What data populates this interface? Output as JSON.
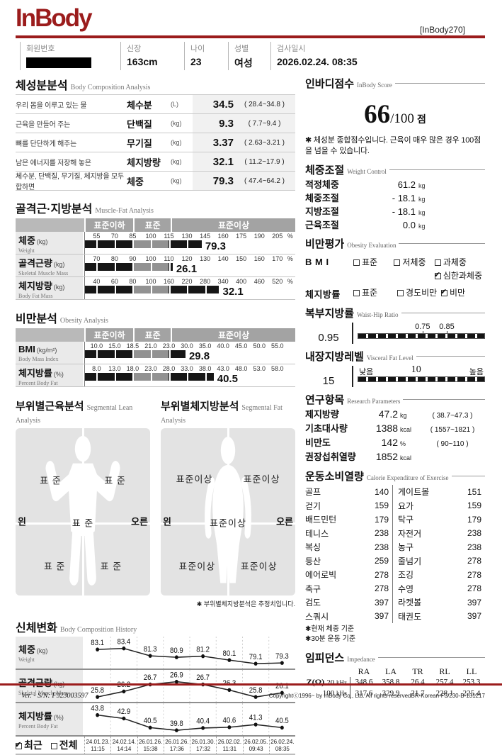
{
  "header": {
    "logo": "InBody",
    "model": "[InBody270]",
    "fields": [
      {
        "label": "회원번호",
        "value": ""
      },
      {
        "label": "신장",
        "value": "163cm"
      },
      {
        "label": "나이",
        "value": "23"
      },
      {
        "label": "성별",
        "value": "여성"
      },
      {
        "label": "검사일시",
        "value": "2026.02.24. 08:35"
      }
    ]
  },
  "body_composition": {
    "title": "체성분분석",
    "subtitle": "Body Composition Analysis",
    "rows": [
      {
        "desc": "우리 몸을 이루고 있는 물",
        "name": "체수분",
        "unit": "(L)",
        "value": "34.5",
        "range": "( 28.4~34.8 )"
      },
      {
        "desc": "근육을 만들어 주는",
        "name": "단백질",
        "unit": "(kg)",
        "value": "9.3",
        "range": "( 7.7~9.4 )"
      },
      {
        "desc": "뼈를 단단하게 해주는",
        "name": "무기질",
        "unit": "(kg)",
        "value": "3.37",
        "range": "( 2.63~3.21 )"
      },
      {
        "desc": "남은 에너지를 저장해 놓은",
        "name": "체지방량",
        "unit": "(kg)",
        "value": "32.1",
        "range": "( 11.2~17.9 )"
      },
      {
        "desc": "체수분, 단백질, 무기질, 체지방을 모두 합하면",
        "name": "체중",
        "unit": "(kg)",
        "value": "79.3",
        "range": "( 47.4~64.2 )"
      }
    ]
  },
  "muscle_fat": {
    "title": "골격근·지방분석",
    "subtitle": "Muscle-Fat Analysis",
    "band": [
      "표준이하",
      "표준",
      "표준이상"
    ],
    "axis_unit": "%",
    "rows": [
      {
        "kr": "체중",
        "en": "Weight",
        "unit": "(kg)",
        "ticks": [
          "55",
          "70",
          "85",
          "100",
          "115",
          "130",
          "145",
          "160",
          "175",
          "190",
          "205"
        ],
        "value": "79.3",
        "frac": 0.555
      },
      {
        "kr": "골격근량",
        "en": "Skeletal Muscle Mass",
        "unit": "(kg)",
        "ticks": [
          "70",
          "80",
          "90",
          "100",
          "110",
          "120",
          "130",
          "140",
          "150",
          "160",
          "170"
        ],
        "value": "26.1",
        "frac": 0.417
      },
      {
        "kr": "체지방량",
        "en": "Body Fat Mass",
        "unit": "(kg)",
        "ticks": [
          "40",
          "60",
          "80",
          "100",
          "160",
          "220",
          "280",
          "340",
          "400",
          "460",
          "520"
        ],
        "value": "32.1",
        "frac": 0.638
      }
    ]
  },
  "obesity_analysis": {
    "title": "비만분석",
    "subtitle": "Obesity Analysis",
    "band": [
      "표준이하",
      "표준",
      "표준이상"
    ],
    "axis_unit": "",
    "rows": [
      {
        "kr": "BMI",
        "en": "Body Mass Index",
        "unit": "(kg/m²)",
        "ticks": [
          "10.0",
          "15.0",
          "18.5",
          "21.0",
          "23.0",
          "30.0",
          "35.0",
          "40.0",
          "45.0",
          "50.0",
          "55.0"
        ],
        "value": "29.8",
        "frac": 0.478
      },
      {
        "kr": "체지방률",
        "en": "Percent Body Fat",
        "unit": "(%)",
        "ticks": [
          "8.0",
          "13.0",
          "18.0",
          "23.0",
          "28.0",
          "33.0",
          "38.0",
          "43.0",
          "48.0",
          "53.0",
          "58.0"
        ],
        "value": "40.5",
        "frac": 0.612
      }
    ]
  },
  "segmental_lean": {
    "title": "부위별근육분석",
    "subtitle": "Segmental Lean Analysis",
    "left": "왼",
    "right": "오른",
    "labels": {
      "left_arm": "표 준",
      "right_arm": "표 준",
      "trunk": "표 준",
      "left_leg": "표 준",
      "right_leg": "표 준"
    }
  },
  "segmental_fat": {
    "title": "부위별체지방분석",
    "subtitle": "Segmental Fat Analysis",
    "left": "왼",
    "right": "오른",
    "labels": {
      "left_arm": "표준이상",
      "right_arm": "표준이상",
      "trunk": "표준이상",
      "left_leg": "표준이상",
      "right_leg": "표준이상"
    },
    "note": "✱ 부위별체지방분석은 추정치입니다."
  },
  "history": {
    "title": "신체변화",
    "subtitle": "Body Composition History",
    "legend": [
      {
        "label": "최근",
        "checked": true
      },
      {
        "label": "전체",
        "checked": false
      }
    ],
    "rows": [
      {
        "kr": "체중",
        "en": "Weight",
        "unit": "(kg)",
        "values": [
          83.1,
          83.4,
          81.3,
          80.9,
          81.2,
          80.1,
          79.1,
          79.3
        ]
      },
      {
        "kr": "골격근량",
        "en": "Skeletal Muscle Mass",
        "unit": "(kg)",
        "values": [
          25.8,
          26.2,
          26.7,
          26.9,
          26.7,
          26.3,
          25.8,
          26.1
        ]
      },
      {
        "kr": "체지방률",
        "en": "Percent Body Fat",
        "unit": "(%)",
        "values": [
          43.8,
          42.9,
          40.5,
          39.8,
          40.4,
          40.6,
          41.3,
          40.5
        ]
      }
    ],
    "dates": [
      {
        "d": "24.01.23.",
        "t": "11:15"
      },
      {
        "d": "24.02.14.",
        "t": "14:14"
      },
      {
        "d": "26.01.26.",
        "t": "15:38"
      },
      {
        "d": "26.01.26.",
        "t": "17:36"
      },
      {
        "d": "26.01.30.",
        "t": "17:32"
      },
      {
        "d": "26.02.02.",
        "t": "11:31"
      },
      {
        "d": "26.02.05.",
        "t": "09:43"
      },
      {
        "d": "26.02.24.",
        "t": "08:35"
      }
    ]
  },
  "score": {
    "title": "인바디점수",
    "subtitle": "InBody Score",
    "value": "66",
    "denom": "/100",
    "unit": "점",
    "note": "✱ 체성분 종합점수입니다. 근육이 매우 많은 경우 100점을 넘을 수 있습니다."
  },
  "weight_control": {
    "title": "체중조절",
    "subtitle": "Weight Control",
    "rows": [
      {
        "label": "적정체중",
        "value": "61.2",
        "unit": "kg"
      },
      {
        "label": "체중조절",
        "value": "- 18.1",
        "unit": "kg"
      },
      {
        "label": "지방조절",
        "value": "- 18.1",
        "unit": "kg"
      },
      {
        "label": "근육조절",
        "value": "0.0",
        "unit": "kg"
      }
    ]
  },
  "obesity_eval": {
    "title": "비만평가",
    "subtitle": "Obesity Evaluation",
    "bmi_label": "B M I",
    "bmi_options": [
      {
        "label": "표준",
        "checked": false
      },
      {
        "label": "저체중",
        "checked": false
      },
      {
        "label": "과체중",
        "checked": false
      },
      {
        "label": "심한과체중",
        "checked": true
      }
    ],
    "pbf_label": "체지방률",
    "pbf_options": [
      {
        "label": "표준",
        "checked": false
      },
      {
        "label": "경도비만",
        "checked": false
      },
      {
        "label": "비만",
        "checked": true
      }
    ]
  },
  "whr": {
    "title": "복부지방률",
    "subtitle": "Waist-Hip Ratio",
    "value": "0.95",
    "tick1": "0.75",
    "tick2": "0.85"
  },
  "vfl": {
    "title": "내장지방레벨",
    "subtitle": "Visceral Fat Level",
    "value": "15",
    "low": "낮음",
    "mid": "10",
    "high": "높음"
  },
  "research": {
    "title": "연구항목",
    "subtitle": "Research Parameters",
    "rows": [
      {
        "label": "제지방량",
        "value": "47.2",
        "unit": "kg",
        "range": "( 38.7~47.3 )"
      },
      {
        "label": "기초대사량",
        "value": "1388",
        "unit": "kcal",
        "range": "( 1557~1821 )"
      },
      {
        "label": "비만도",
        "value": "142",
        "unit": "%",
        "range": "( 90~110 )"
      },
      {
        "label": "권장섭취열량",
        "value": "1852",
        "unit": "kcal",
        "range": ""
      }
    ]
  },
  "exercise": {
    "title": "운동소비열량",
    "subtitle": "Calorie Expenditure of Exercise",
    "left": [
      {
        "name": "골프",
        "kcal": "140"
      },
      {
        "name": "걷기",
        "kcal": "159"
      },
      {
        "name": "배드민턴",
        "kcal": "179"
      },
      {
        "name": "테니스",
        "kcal": "238"
      },
      {
        "name": "복싱",
        "kcal": "238"
      },
      {
        "name": "등산",
        "kcal": "259"
      },
      {
        "name": "에어로빅",
        "kcal": "278"
      },
      {
        "name": "축구",
        "kcal": "278"
      },
      {
        "name": "검도",
        "kcal": "397"
      },
      {
        "name": "스쿼시",
        "kcal": "397"
      }
    ],
    "right": [
      {
        "name": "게이트볼",
        "kcal": "151"
      },
      {
        "name": "요가",
        "kcal": "159"
      },
      {
        "name": "탁구",
        "kcal": "179"
      },
      {
        "name": "자전거",
        "kcal": "238"
      },
      {
        "name": "농구",
        "kcal": "238"
      },
      {
        "name": "줄넘기",
        "kcal": "278"
      },
      {
        "name": "조깅",
        "kcal": "278"
      },
      {
        "name": "수영",
        "kcal": "278"
      },
      {
        "name": "라켓볼",
        "kcal": "397"
      },
      {
        "name": "태권도",
        "kcal": "397"
      }
    ],
    "notes": [
      "✱현재 체중 기준",
      "✱30분 운동 기준"
    ]
  },
  "impedance": {
    "title": "임피던스",
    "subtitle": "Impedance",
    "cols": [
      "RA",
      "LA",
      "TR",
      "RL",
      "LL"
    ],
    "rows": [
      {
        "z": "Z(Ω)",
        "freq": "20",
        "unit": "kHz",
        "values": [
          "348.6",
          "358.8",
          "26.4",
          "257.4",
          "253.3"
        ]
      },
      {
        "z": "",
        "freq": "100",
        "unit": "kHz",
        "values": [
          "317.6",
          "329.9",
          "21.7",
          "228.1",
          "225.4"
        ]
      }
    ]
  },
  "footer": {
    "left": "Ver. - S/N: F923003597",
    "right": "Copyrightⓒ1996~ by InBody Co., Ltd. All rights reservedBR-Korean-F3/230-B-131217"
  },
  "chart_data": [
    {
      "type": "line",
      "title": "체중 (kg)",
      "x": [
        "24.01.23 11:15",
        "24.02.14 14:14",
        "26.01.26 15:38",
        "26.01.26 17:36",
        "26.01.30 17:32",
        "26.02.02 11:31",
        "26.02.05 09:43",
        "26.02.24 08:35"
      ],
      "values": [
        83.1,
        83.4,
        81.3,
        80.9,
        81.2,
        80.1,
        79.1,
        79.3
      ]
    },
    {
      "type": "line",
      "title": "골격근량 (kg)",
      "x": [
        "24.01.23 11:15",
        "24.02.14 14:14",
        "26.01.26 15:38",
        "26.01.26 17:36",
        "26.01.30 17:32",
        "26.02.02 11:31",
        "26.02.05 09:43",
        "26.02.24 08:35"
      ],
      "values": [
        25.8,
        26.2,
        26.7,
        26.9,
        26.7,
        26.3,
        25.8,
        26.1
      ]
    },
    {
      "type": "line",
      "title": "체지방률 (%)",
      "x": [
        "24.01.23 11:15",
        "24.02.14 14:14",
        "26.01.26 15:38",
        "26.01.26 17:36",
        "26.01.30 17:32",
        "26.02.02 11:31",
        "26.02.05 09:43",
        "26.02.24 08:35"
      ],
      "values": [
        43.8,
        42.9,
        40.5,
        39.8,
        40.4,
        40.6,
        41.3,
        40.5
      ]
    },
    {
      "type": "bar",
      "title": "골격근·지방분석 (% of standard)",
      "categories": [
        "체중",
        "골격근량",
        "체지방량"
      ],
      "values": [
        79.3,
        26.1,
        32.1
      ]
    },
    {
      "type": "bar",
      "title": "비만분석",
      "categories": [
        "BMI",
        "체지방률"
      ],
      "values": [
        29.8,
        40.5
      ]
    }
  ]
}
